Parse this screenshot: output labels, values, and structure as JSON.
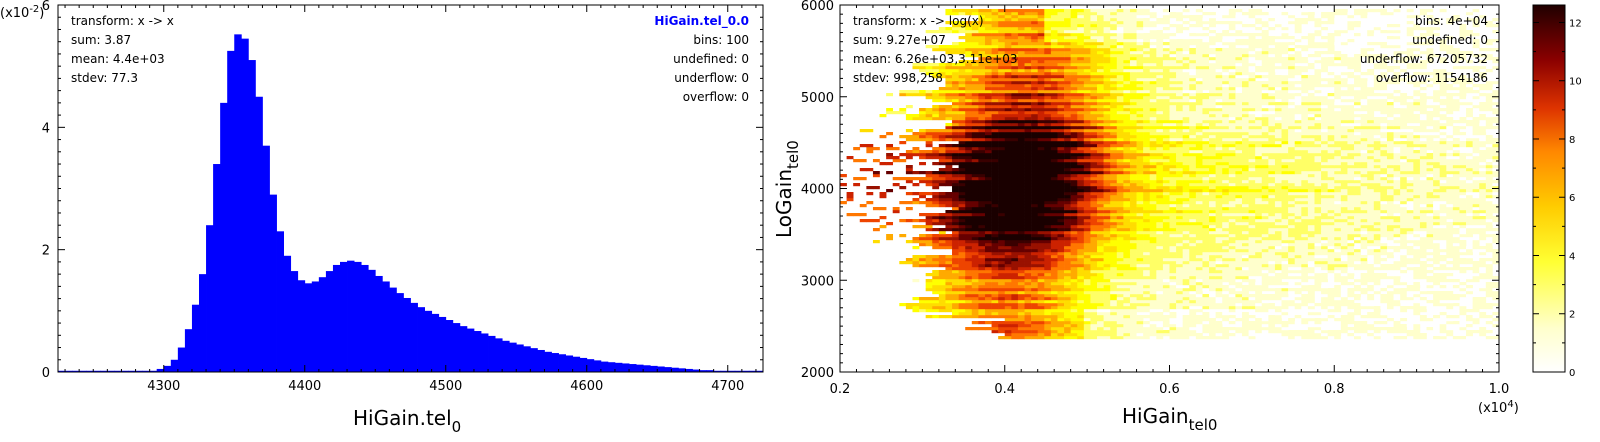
{
  "chart_data": [
    {
      "type": "bar",
      "xlabel": "HiGain.tel",
      "xlabel_sub": "0",
      "ylabel": "",
      "y_exponent": "(x10",
      "y_exponent_power": "-2",
      "y_exponent_close": ")",
      "xlim": [
        4225,
        4725
      ],
      "ylim": [
        0,
        6
      ],
      "x_ticks": [
        "4300",
        "4400",
        "4500",
        "4600",
        "4700"
      ],
      "y_ticks": [
        "0",
        "2",
        "4",
        "6"
      ],
      "bin_width": 5,
      "bin_start": 4225,
      "values": [
        0.02,
        0.02,
        0.02,
        0.02,
        0.02,
        0.02,
        0.02,
        0.02,
        0.02,
        0.02,
        0.02,
        0.02,
        0.02,
        0.02,
        0.05,
        0.1,
        0.2,
        0.4,
        0.7,
        1.1,
        1.6,
        2.4,
        3.4,
        4.4,
        5.25,
        5.52,
        5.45,
        5.1,
        4.5,
        3.7,
        2.9,
        2.3,
        1.9,
        1.65,
        1.5,
        1.45,
        1.48,
        1.55,
        1.65,
        1.75,
        1.8,
        1.82,
        1.8,
        1.75,
        1.67,
        1.57,
        1.48,
        1.38,
        1.29,
        1.21,
        1.13,
        1.06,
        1.0,
        0.95,
        0.9,
        0.85,
        0.8,
        0.75,
        0.71,
        0.67,
        0.63,
        0.59,
        0.55,
        0.51,
        0.48,
        0.45,
        0.42,
        0.39,
        0.36,
        0.33,
        0.31,
        0.29,
        0.27,
        0.25,
        0.23,
        0.21,
        0.19,
        0.17,
        0.16,
        0.15,
        0.14,
        0.13,
        0.12,
        0.11,
        0.1,
        0.09,
        0.08,
        0.07,
        0.06,
        0.05,
        0.04,
        0.03,
        0.03,
        0.02,
        0.02,
        0.02,
        0.02,
        0.02,
        0.02,
        0.02
      ],
      "bar_color": "#0000ff",
      "stats_left": [
        "transform: x -> x",
        "sum: 3.87",
        "mean: 4.4e+03",
        "stdev: 77.3"
      ],
      "stats_right_title": "HiGain.tel_0.0",
      "stats_right": [
        "bins: 100",
        "undefined: 0",
        "underflow: 0",
        "overflow: 0"
      ],
      "grid": false,
      "legend": "top-right"
    },
    {
      "type": "heatmap",
      "xlabel": "HiGain",
      "xlabel_sub": "tel0",
      "ylabel": "LoGain",
      "ylabel_sub": "tel0",
      "x_exponent": "(x10",
      "x_exponent_power": "4",
      "x_exponent_close": ")",
      "xlim": [
        0.2,
        1.0
      ],
      "ylim": [
        2000,
        6000
      ],
      "x_ticks": [
        "0.2",
        "0.4",
        "0.6",
        "0.8",
        "1.0"
      ],
      "y_ticks": [
        "2000",
        "3000",
        "4000",
        "5000",
        "6000"
      ],
      "colorbar_ticks": [
        "0",
        "2",
        "4",
        "6",
        "8",
        "10",
        "12"
      ],
      "colorbar_range": [
        0,
        12.6
      ],
      "colormap": [
        "#ffffff",
        "#ffff66",
        "#ffdd00",
        "#ffaa00",
        "#ee5500",
        "#bb1100",
        "#6a0000",
        "#1a0000"
      ],
      "stats_left": [
        "transform: x -> log(x)",
        "sum: 9.27e+07",
        "mean: 6.26e+03,3.11e+03",
        "stdev: 998,258"
      ],
      "stats_right": [
        "bins: 4e+04",
        "undefined: 0",
        "underflow: 67205732",
        "overflow: 1154186"
      ]
    }
  ]
}
